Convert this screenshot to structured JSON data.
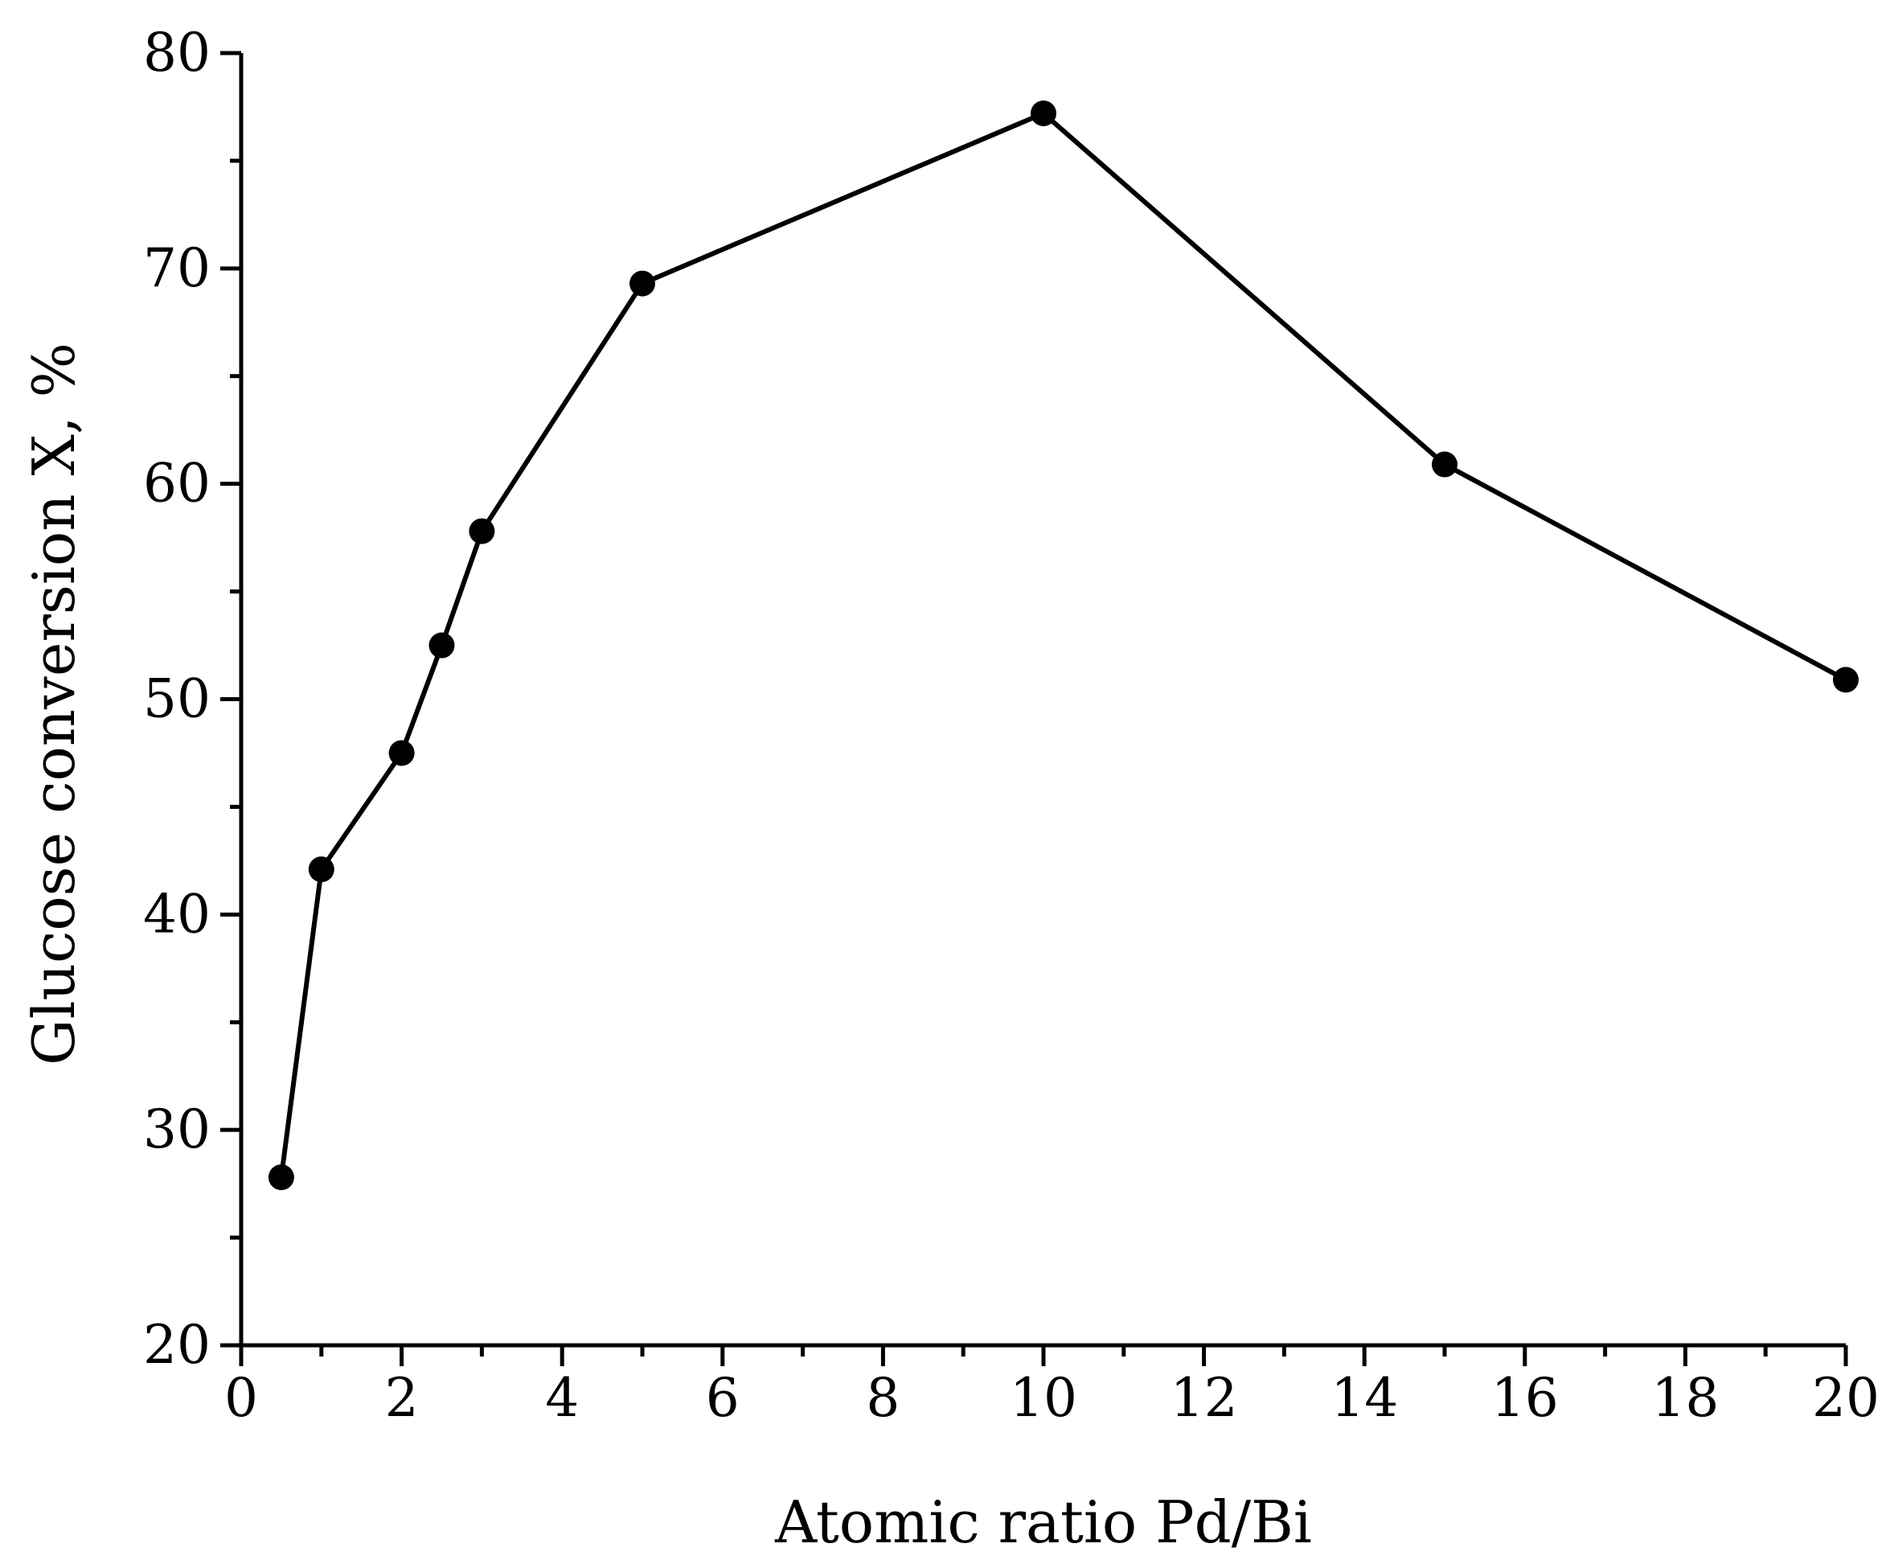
{
  "chart_data": {
    "type": "line",
    "title": "",
    "xlabel": "Atomic ratio Pd/Bi",
    "ylabel": "Glucose conversion X, %",
    "xlim": [
      0,
      20
    ],
    "ylim": [
      20,
      80
    ],
    "x_ticks": [
      0,
      2,
      4,
      6,
      8,
      10,
      12,
      14,
      16,
      18,
      20
    ],
    "y_ticks": [
      20,
      30,
      40,
      50,
      60,
      70,
      80
    ],
    "x_tick_labels": [
      "0",
      "2",
      "4",
      "6",
      "8",
      "10",
      "12",
      "14",
      "16",
      "18",
      "20"
    ],
    "y_tick_labels": [
      "20",
      "30",
      "40",
      "50",
      "60",
      "70",
      "80"
    ],
    "x_minor_step": 1,
    "y_minor_step": 5,
    "grid": false,
    "legend": "none",
    "series": [
      {
        "color": "#000000",
        "marker": "circle",
        "x": [
          0.5,
          1,
          2,
          2.5,
          3,
          5,
          10,
          15,
          20
        ],
        "y": [
          27.8,
          42.1,
          47.5,
          52.5,
          57.8,
          69.3,
          77.2,
          60.9,
          50.9
        ]
      }
    ]
  }
}
